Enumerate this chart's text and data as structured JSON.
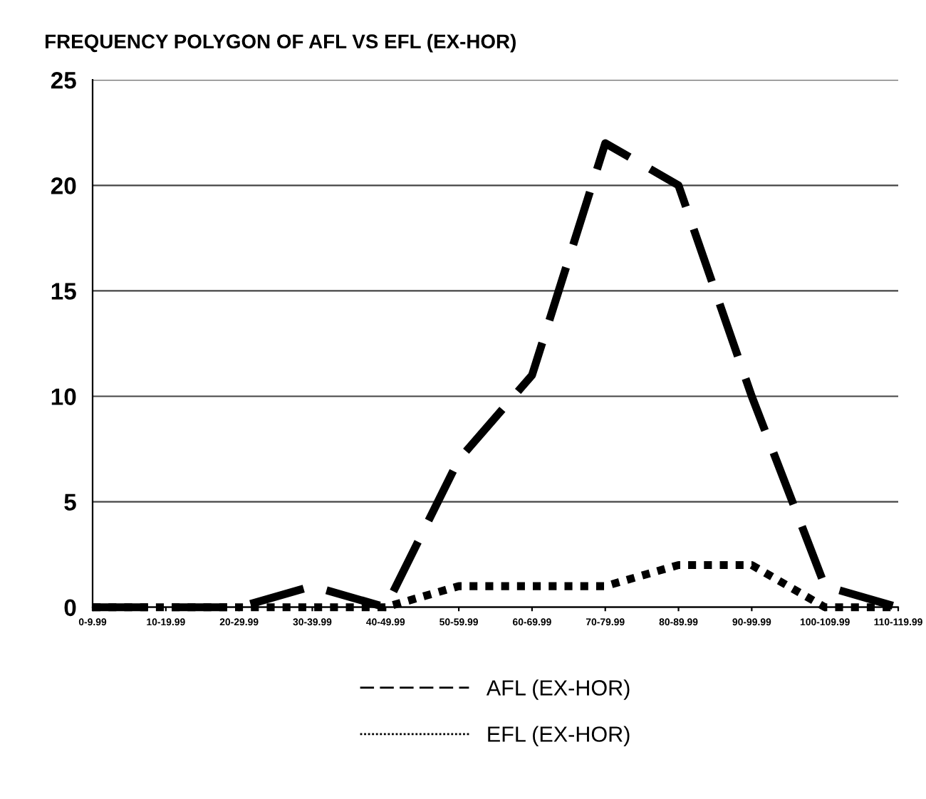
{
  "chart_data": {
    "type": "line",
    "title": "FREQUENCY POLYGON OF AFL VS EFL (EX-HOR)",
    "categories": [
      "0-9.99",
      "10-19.99",
      "20-29.99",
      "30-39.99",
      "40-49.99",
      "50-59.99",
      "60-69.99",
      "70-79.99",
      "80-89.99",
      "90-99.99",
      "100-109.99",
      "110-119.99"
    ],
    "series": [
      {
        "name": "AFL (EX-HOR)",
        "color": "#000000",
        "line_style": "dashed",
        "values": [
          0,
          0,
          0,
          1,
          0,
          7,
          11,
          22,
          20,
          10,
          1,
          0
        ]
      },
      {
        "name": "EFL (EX-HOR)",
        "color": "#000000",
        "line_style": "dotted",
        "values": [
          0,
          0,
          0,
          0,
          0,
          1,
          1,
          1,
          2,
          2,
          0,
          0
        ]
      }
    ],
    "ylim": [
      0,
      25
    ],
    "yticks": [
      0,
      5,
      10,
      15,
      20,
      25
    ],
    "grid": "y",
    "legend": "bottom",
    "marker": "none"
  }
}
